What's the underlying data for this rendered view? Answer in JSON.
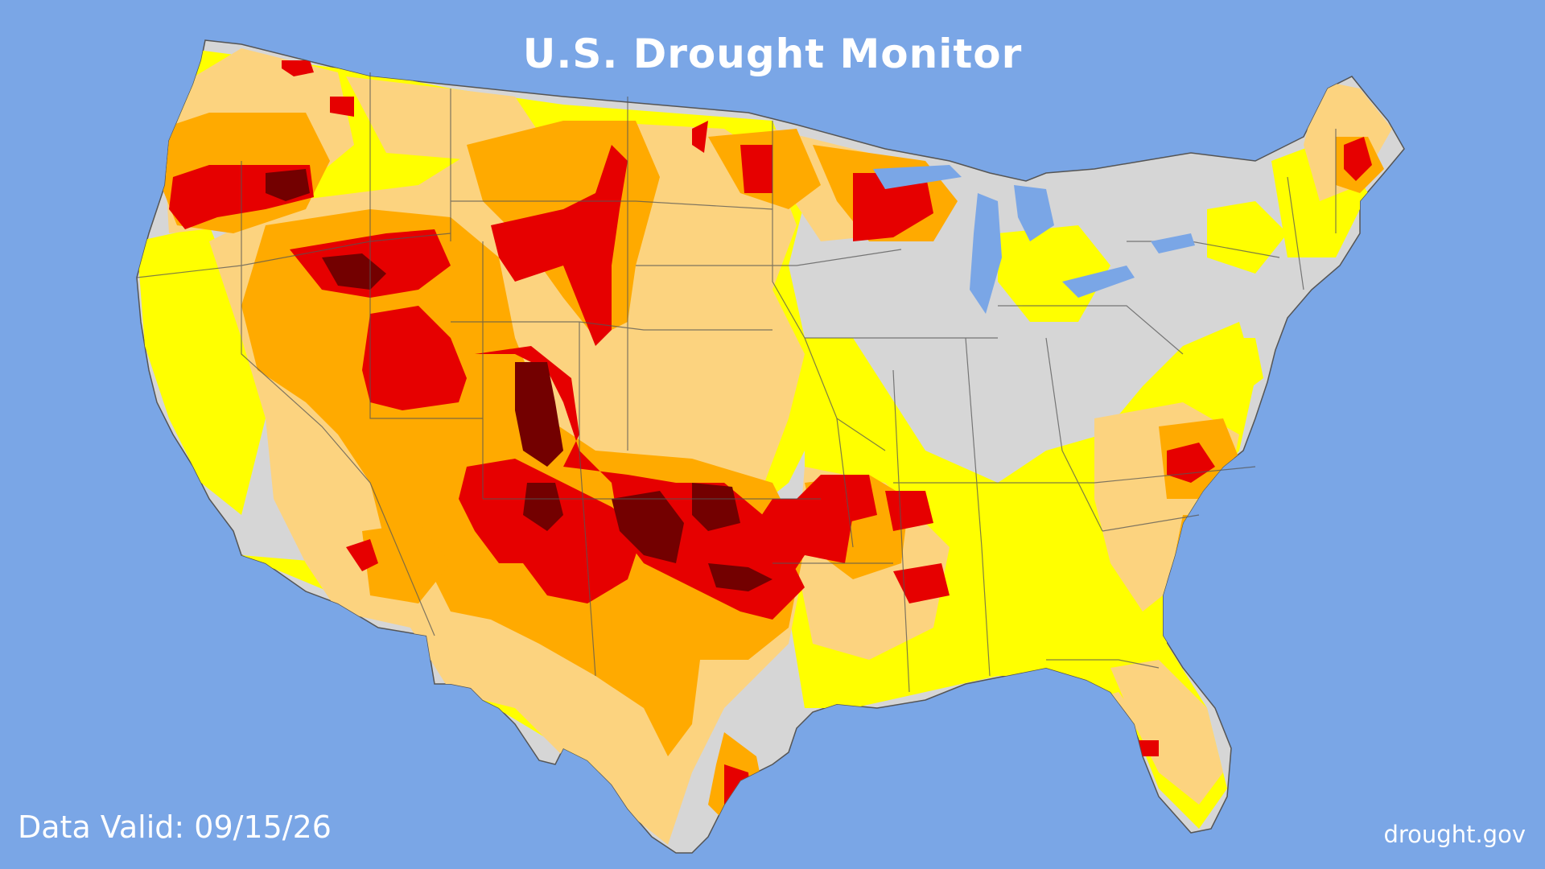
{
  "title": "U.S. Drought Monitor",
  "data_valid": "Data Valid: 09/15/26",
  "source": "drought.gov",
  "colors": {
    "background": "#7aa6e6",
    "no_drought": "#d6d6d6",
    "abnormally_dry": "#ffff00",
    "moderate": "#fcd37f",
    "severe": "#ffaa00",
    "extreme": "#e60000",
    "exceptional": "#730000",
    "state_borders": "#555555"
  }
}
